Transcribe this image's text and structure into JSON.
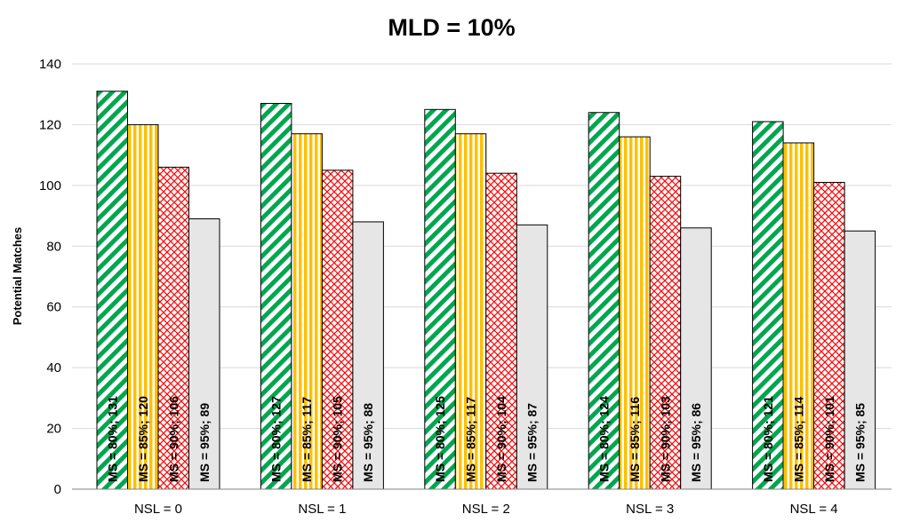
{
  "chart_data": {
    "type": "bar",
    "title": "MLD = 10%",
    "ylabel": "Potential Matches",
    "xlabel": "",
    "ylim": [
      0,
      140
    ],
    "yticks": [
      0,
      20,
      40,
      60,
      80,
      100,
      120,
      140
    ],
    "grid": true,
    "categories": [
      "NSL = 0",
      "NSL = 1",
      "NSL = 2",
      "NSL = 3",
      "NSL = 4"
    ],
    "series": [
      {
        "name": "MS = 80%",
        "values": [
          131,
          127,
          125,
          124,
          121
        ],
        "labels": [
          "MS = 80%; 131",
          "MS = 80%; 127",
          "MS = 80%; 125",
          "MS = 80%; 124",
          "MS = 80%; 121"
        ],
        "color": "#00a650",
        "pattern": "diagonal-stripes"
      },
      {
        "name": "MS = 85%",
        "values": [
          120,
          117,
          117,
          116,
          114
        ],
        "labels": [
          "MS = 85%; 120",
          "MS = 85%; 117",
          "MS = 85%; 117",
          "MS = 85%; 116",
          "MS = 85%; 114"
        ],
        "color": "#ffc000",
        "pattern": "vertical-stripes"
      },
      {
        "name": "MS = 90%",
        "values": [
          106,
          105,
          104,
          103,
          101
        ],
        "labels": [
          "MS = 90%; 106",
          "MS = 90%; 105",
          "MS = 90%; 104",
          "MS = 90%; 103",
          "MS = 90%; 101"
        ],
        "color": "#ff0000",
        "pattern": "crosshatch"
      },
      {
        "name": "MS = 95%",
        "values": [
          89,
          88,
          87,
          86,
          85
        ],
        "labels": [
          "MS = 95%; 89",
          "MS = 95%; 88",
          "MS = 95%; 87",
          "MS = 95%; 86",
          "MS = 95%; 85"
        ],
        "color": "#e6e6e6",
        "pattern": "solid"
      }
    ]
  }
}
